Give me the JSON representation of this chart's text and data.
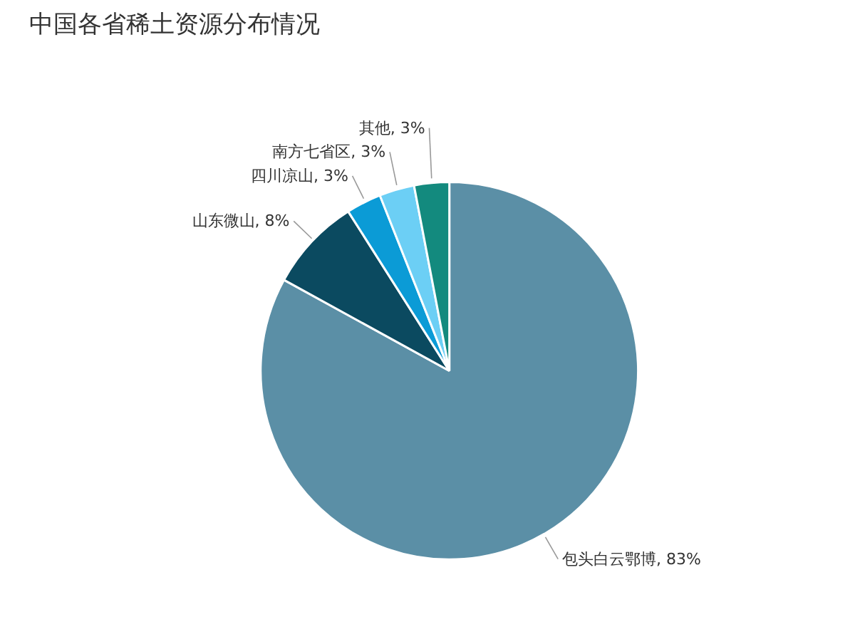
{
  "chart_data": {
    "type": "pie",
    "title": "中国各省稀土资源分布情况",
    "categories": [
      "包头白云鄂博",
      "山东微山",
      "四川凉山",
      "南方七省区",
      "其他"
    ],
    "values": [
      83,
      8,
      3,
      3,
      3
    ],
    "value_labels": [
      "83%",
      "8%",
      "3%",
      "3%",
      "3%"
    ],
    "colors": [
      "#5b8fa6",
      "#0b4a60",
      "#0b9bd6",
      "#6ccff5",
      "#138a7e"
    ]
  }
}
